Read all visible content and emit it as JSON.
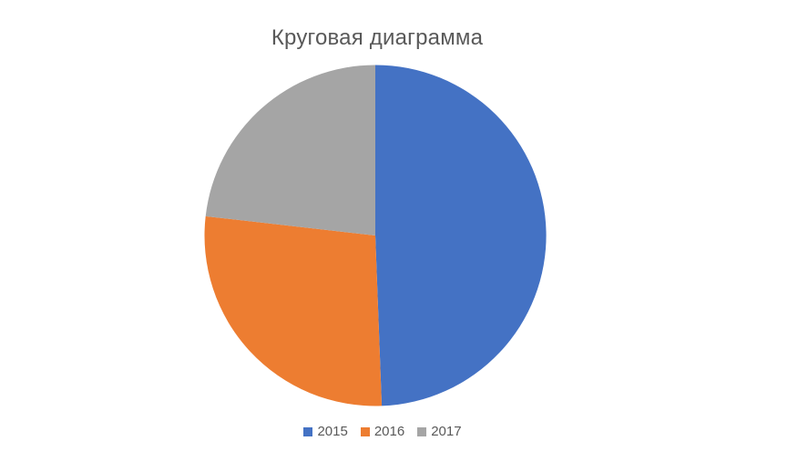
{
  "title": "Круговая диаграмма",
  "colors": {
    "background": "#FFFFFF",
    "text": "#595959",
    "accent_blue": "#4472C4",
    "accent_orange": "#ED7D31",
    "accent_gray": "#A5A5A5"
  },
  "chart_data": {
    "type": "pie",
    "title": "Круговая диаграмма",
    "categories": [
      "2015",
      "2016",
      "2017"
    ],
    "values": [
      49.4,
      27.4,
      23.2
    ],
    "value_format": "percent_of_total_estimated_from_slice_angles",
    "slice_angles_deg": [
      177.8,
      98.7,
      83.5
    ],
    "slice_colors": [
      "#4472C4",
      "#ED7D31",
      "#A5A5A5"
    ],
    "start_angle_deg": 0,
    "direction": "clockwise",
    "grid": false,
    "legend_position": "bottom"
  },
  "legend": {
    "items": [
      {
        "label": "2015",
        "color": "#4472C4"
      },
      {
        "label": "2016",
        "color": "#ED7D31"
      },
      {
        "label": "2017",
        "color": "#A5A5A5"
      }
    ]
  }
}
